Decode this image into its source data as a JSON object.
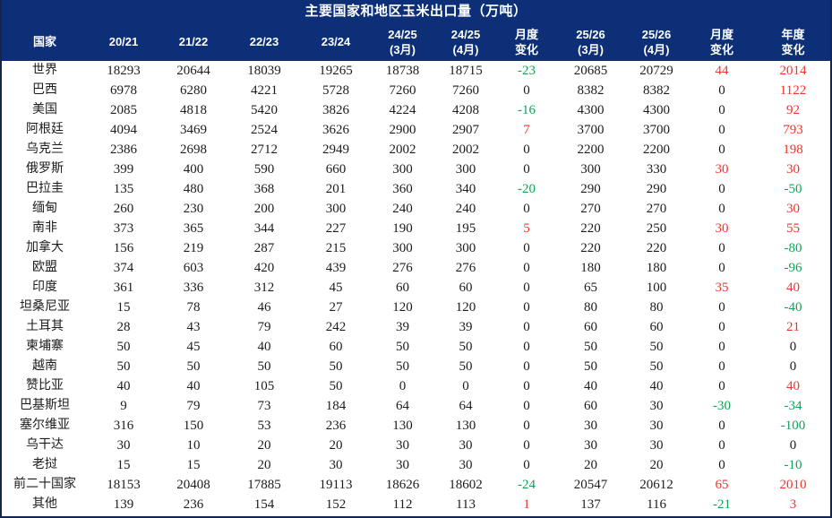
{
  "chart_data": {
    "type": "table",
    "title": "主要国家和地区玉米出口量（万吨）",
    "columns": [
      {
        "line1": "国家",
        "line2": ""
      },
      {
        "line1": "20/21",
        "line2": ""
      },
      {
        "line1": "21/22",
        "line2": ""
      },
      {
        "line1": "22/23",
        "line2": ""
      },
      {
        "line1": "23/24",
        "line2": ""
      },
      {
        "line1": "24/25",
        "line2": "(3月)"
      },
      {
        "line1": "24/25",
        "line2": "(4月)"
      },
      {
        "line1": "月度",
        "line2": "变化"
      },
      {
        "line1": "25/26",
        "line2": "(3月)"
      },
      {
        "line1": "25/26",
        "line2": "(4月)"
      },
      {
        "line1": "月度",
        "line2": "变化"
      },
      {
        "line1": "年度",
        "line2": "变化"
      }
    ],
    "change_columns": [
      6,
      9,
      10
    ],
    "rows": [
      {
        "country": "世界",
        "values": [
          18293,
          20644,
          18039,
          19265,
          18738,
          18715,
          -23,
          20685,
          20729,
          44,
          2014
        ]
      },
      {
        "country": "巴西",
        "values": [
          6978,
          6280,
          4221,
          5728,
          7260,
          7260,
          0,
          8382,
          8382,
          0,
          1122
        ]
      },
      {
        "country": "美国",
        "values": [
          2085,
          4818,
          5420,
          3826,
          4224,
          4208,
          -16,
          4300,
          4300,
          0,
          92
        ]
      },
      {
        "country": "阿根廷",
        "values": [
          4094,
          3469,
          2524,
          3626,
          2900,
          2907,
          7,
          3700,
          3700,
          0,
          793
        ]
      },
      {
        "country": "乌克兰",
        "values": [
          2386,
          2698,
          2712,
          2949,
          2002,
          2002,
          0,
          2200,
          2200,
          0,
          198
        ]
      },
      {
        "country": "俄罗斯",
        "values": [
          399,
          400,
          590,
          660,
          300,
          300,
          0,
          300,
          330,
          30,
          30
        ]
      },
      {
        "country": "巴拉圭",
        "values": [
          135,
          480,
          368,
          201,
          360,
          340,
          -20,
          290,
          290,
          0,
          -50
        ]
      },
      {
        "country": "缅甸",
        "values": [
          260,
          230,
          200,
          300,
          240,
          240,
          0,
          270,
          270,
          0,
          30
        ]
      },
      {
        "country": "南非",
        "values": [
          373,
          365,
          344,
          227,
          190,
          195,
          5,
          220,
          250,
          30,
          55
        ]
      },
      {
        "country": "加拿大",
        "values": [
          156,
          219,
          287,
          215,
          300,
          300,
          0,
          220,
          220,
          0,
          -80
        ]
      },
      {
        "country": "欧盟",
        "values": [
          374,
          603,
          420,
          439,
          276,
          276,
          0,
          180,
          180,
          0,
          -96
        ]
      },
      {
        "country": "印度",
        "values": [
          361,
          336,
          312,
          45,
          60,
          60,
          0,
          65,
          100,
          35,
          40
        ]
      },
      {
        "country": "坦桑尼亚",
        "values": [
          15,
          78,
          46,
          27,
          120,
          120,
          0,
          80,
          80,
          0,
          -40
        ]
      },
      {
        "country": "土耳其",
        "values": [
          28,
          43,
          79,
          242,
          39,
          39,
          0,
          60,
          60,
          0,
          21
        ]
      },
      {
        "country": "柬埔寨",
        "values": [
          50,
          45,
          40,
          60,
          50,
          50,
          0,
          50,
          50,
          0,
          0
        ]
      },
      {
        "country": "越南",
        "values": [
          50,
          50,
          50,
          50,
          50,
          50,
          0,
          50,
          50,
          0,
          0
        ]
      },
      {
        "country": "赞比亚",
        "values": [
          40,
          40,
          105,
          50,
          0,
          0,
          0,
          40,
          40,
          0,
          40
        ]
      },
      {
        "country": "巴基斯坦",
        "values": [
          9,
          79,
          73,
          184,
          64,
          64,
          0,
          60,
          30,
          -30,
          -34
        ]
      },
      {
        "country": "塞尔维亚",
        "values": [
          316,
          150,
          53,
          236,
          130,
          130,
          0,
          30,
          30,
          0,
          -100
        ]
      },
      {
        "country": "乌干达",
        "values": [
          30,
          10,
          20,
          20,
          30,
          30,
          0,
          30,
          30,
          0,
          0
        ]
      },
      {
        "country": "老挝",
        "values": [
          15,
          15,
          20,
          30,
          30,
          30,
          0,
          20,
          20,
          0,
          -10
        ]
      },
      {
        "country": "前二十国家",
        "values": [
          18153,
          20408,
          17885,
          19113,
          18626,
          18602,
          -24,
          20547,
          20612,
          65,
          2010
        ]
      },
      {
        "country": "其他",
        "values": [
          139,
          236,
          154,
          152,
          112,
          113,
          1,
          137,
          116,
          -21,
          3
        ]
      }
    ],
    "colors": {
      "header_bg": "#0d2f78",
      "header_text": "#ffffff",
      "positive_change": "#f0342b",
      "negative_change": "#0ea358",
      "body_text": "#1c1c1c"
    },
    "layout_hints": {
      "grid": "off",
      "change_color_rule": "positive=red, negative=green, zero=black"
    }
  }
}
